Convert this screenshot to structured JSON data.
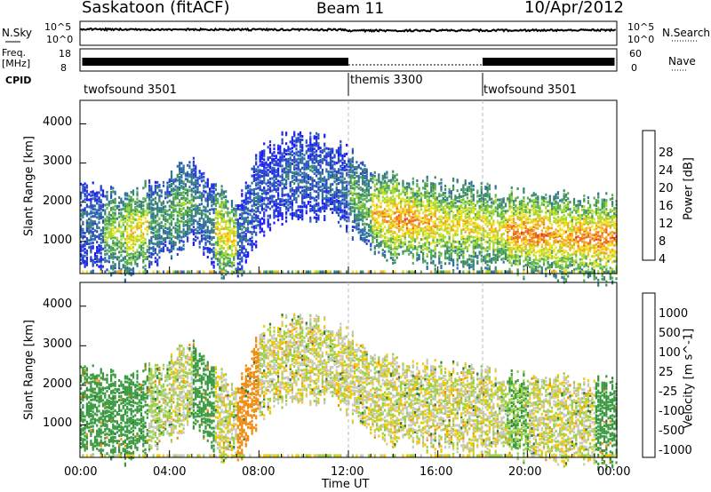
{
  "header": {
    "site": "Saskatoon (fitACF)",
    "beam": "Beam 11",
    "date": "10/Apr/2012"
  },
  "status_panels": {
    "nsky_label": "N.Sky",
    "nsky_ticks": [
      "10^5",
      "10^0"
    ],
    "nsearch_label": "N.Search",
    "nsearch_ticks": [
      "10^5",
      "10^0"
    ],
    "freq_label": "Freq.",
    "freq_unit": "[MHz]",
    "freq_ticks": [
      "18",
      "8"
    ],
    "nave_label": "Nave",
    "nave_ticks": [
      "60",
      "0"
    ],
    "cpid_label": "CPID",
    "cpid_segments": [
      {
        "name": "twofsound 3501",
        "start": "00:00",
        "end": "12:00"
      },
      {
        "name": "themis 3300",
        "start": "12:00",
        "end": "18:00"
      },
      {
        "name": "twofsound 3501",
        "start": "18:00",
        "end": "24:00"
      }
    ]
  },
  "chart_data": [
    {
      "type": "heatmap",
      "title": "",
      "xlabel": "",
      "ylabel": "Slant Range [km]",
      "xlim": [
        "00:00",
        "24:00"
      ],
      "ylim": [
        180,
        4600
      ],
      "yticks": [
        "1000",
        "2000",
        "3000",
        "4000"
      ],
      "colorbar": {
        "label": "Power [dB]",
        "ticks": [
          "4",
          "8",
          "12",
          "16",
          "20",
          "24",
          "28"
        ],
        "colors": [
          "#1a1aff",
          "#2a40d0",
          "#2f6fa8",
          "#3c8a6a",
          "#56b050",
          "#a8d830",
          "#f0e020",
          "#f0a820",
          "#ee6a1a",
          "#e83018",
          "#e00808"
        ]
      },
      "series": [
        {
          "values": [
            [
              0,
              1500,
              8
            ],
            [
              1,
              1350,
              16
            ],
            [
              2,
              1200,
              20
            ],
            [
              3,
              1450,
              12
            ],
            [
              4,
              1700,
              14
            ],
            [
              5,
              2100,
              10
            ],
            [
              6,
              1400,
              20
            ],
            [
              7,
              1000,
              8
            ],
            [
              8,
              2300,
              6
            ],
            [
              9,
              2650,
              8
            ],
            [
              10,
              2700,
              8
            ],
            [
              11,
              2650,
              8
            ],
            [
              12,
              2350,
              14
            ],
            [
              13,
              1800,
              22
            ],
            [
              14,
              1650,
              24
            ],
            [
              15,
              1550,
              22
            ],
            [
              16,
              1500,
              20
            ],
            [
              17,
              1450,
              20
            ],
            [
              18,
              1400,
              20
            ],
            [
              19,
              1300,
              24
            ],
            [
              20,
              1250,
              24
            ],
            [
              21,
              1200,
              22
            ],
            [
              22,
              1150,
              24
            ],
            [
              23,
              1100,
              24
            ]
          ]
        }
      ]
    },
    {
      "type": "heatmap",
      "title": "",
      "xlabel": "Time UT",
      "ylabel": "Slant Range [km]",
      "xlim": [
        "00:00",
        "24:00"
      ],
      "ylim": [
        180,
        4600
      ],
      "xticks": [
        "00:00",
        "04:00",
        "08:00",
        "12:00",
        "16:00",
        "20:00",
        "00:00"
      ],
      "yticks": [
        "1000",
        "2000",
        "3000",
        "4000"
      ],
      "colorbar": {
        "label": "Velocity [m s^-1]",
        "ticks": [
          "1000",
          "500",
          "100",
          "25",
          "-25",
          "-100",
          "-500",
          "-1000"
        ],
        "colors": [
          "#1a38c8",
          "#2f7a3c",
          "#3a9a40",
          "#9ad040",
          "#c8c8c0",
          "#f5c800",
          "#f08c10",
          "#e84818",
          "#e01010"
        ]
      },
      "series": [
        {
          "values": [
            [
              0,
              1500,
              200
            ],
            [
              1,
              1300,
              400
            ],
            [
              2,
              1100,
              300
            ],
            [
              3,
              1500,
              50
            ],
            [
              4,
              1700,
              10
            ],
            [
              5,
              1900,
              200
            ],
            [
              6,
              1600,
              0
            ],
            [
              7,
              1100,
              -200
            ],
            [
              8,
              2400,
              0
            ],
            [
              9,
              2700,
              0
            ],
            [
              10,
              2750,
              0
            ],
            [
              11,
              2650,
              0
            ],
            [
              12,
              2300,
              0
            ],
            [
              13,
              1900,
              0
            ],
            [
              14,
              1700,
              0
            ],
            [
              15,
              1600,
              0
            ],
            [
              16,
              1550,
              0
            ],
            [
              17,
              1500,
              0
            ],
            [
              18,
              1500,
              0
            ],
            [
              19,
              1500,
              100
            ],
            [
              20,
              1400,
              0
            ],
            [
              21,
              1300,
              0
            ],
            [
              22,
              1250,
              0
            ],
            [
              23,
              1100,
              300
            ]
          ]
        }
      ]
    }
  ]
}
